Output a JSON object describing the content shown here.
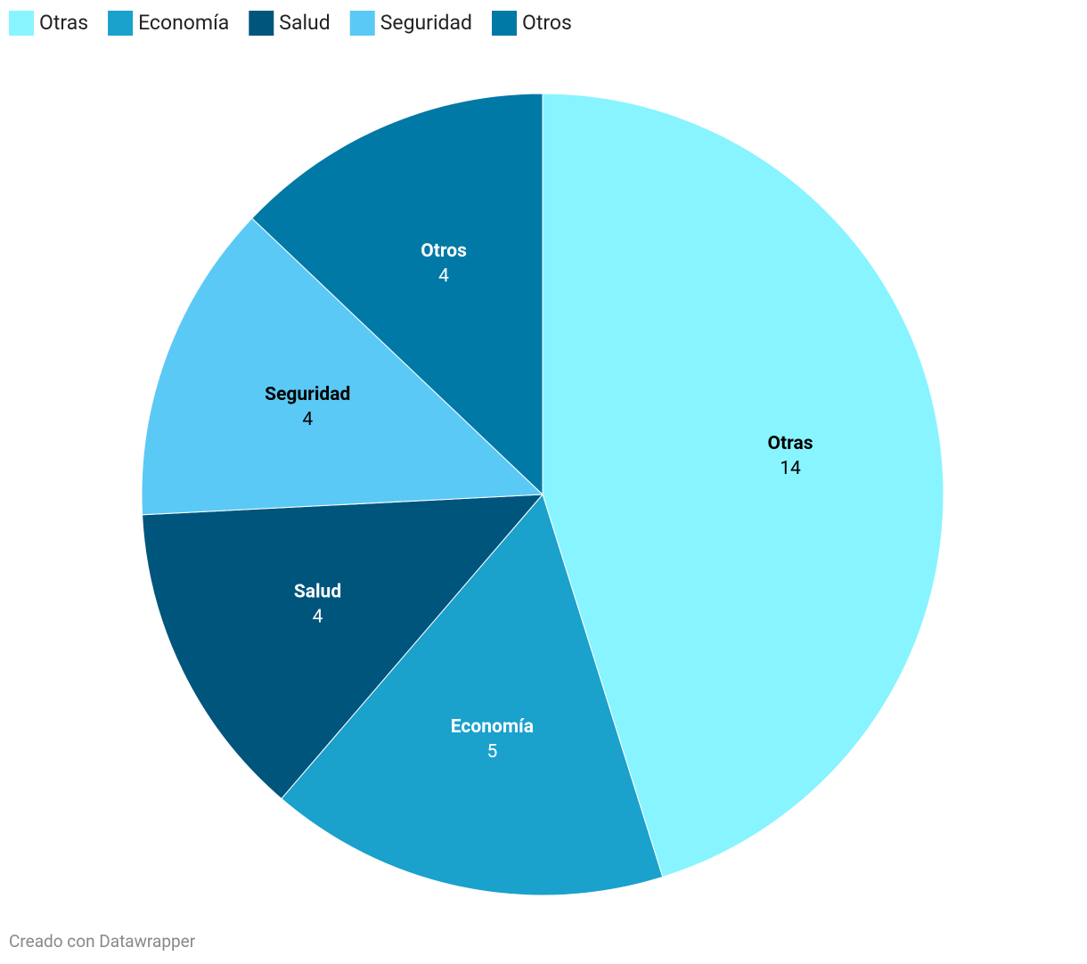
{
  "chart_data": {
    "type": "pie",
    "categories": [
      "Otras",
      "Economía",
      "Salud",
      "Seguridad",
      "Otros"
    ],
    "values": [
      14,
      5,
      4,
      4,
      4
    ],
    "colors": [
      "#88f4ff",
      "#1aa1cc",
      "#00557d",
      "#5bc9f5",
      "#0079a6"
    ],
    "legend": "top-left",
    "footer": "Creado con Datawrapper"
  }
}
